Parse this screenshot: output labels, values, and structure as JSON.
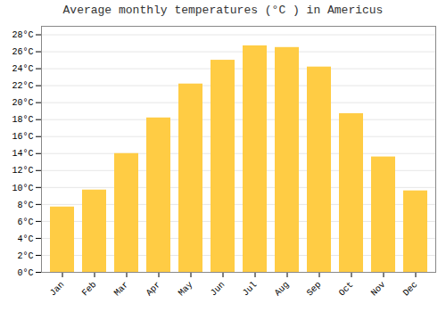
{
  "chart_data": {
    "type": "bar",
    "title": "Average monthly temperatures (°C ) in Americus",
    "categories": [
      "Jan",
      "Feb",
      "Mar",
      "Apr",
      "May",
      "Jun",
      "Jul",
      "Aug",
      "Sep",
      "Oct",
      "Nov",
      "Dec"
    ],
    "values": [
      7.7,
      9.7,
      14.0,
      18.2,
      22.2,
      25.0,
      26.7,
      26.5,
      24.2,
      18.7,
      13.6,
      9.6
    ],
    "color": "#FFCC44",
    "ylim": [
      0,
      29
    ],
    "yticks": [
      {
        "value": 0,
        "label": "0°C"
      },
      {
        "value": 2,
        "label": "2°C"
      },
      {
        "value": 4,
        "label": "4°C"
      },
      {
        "value": 6,
        "label": "6°C"
      },
      {
        "value": 8,
        "label": "8°C"
      },
      {
        "value": 10,
        "label": "10°C"
      },
      {
        "value": 12,
        "label": "12°C"
      },
      {
        "value": 14,
        "label": "14°C"
      },
      {
        "value": 16,
        "label": "16°C"
      },
      {
        "value": 18,
        "label": "18°C"
      },
      {
        "value": 20,
        "label": "20°C"
      },
      {
        "value": 22,
        "label": "22°C"
      },
      {
        "value": 24,
        "label": "24°C"
      },
      {
        "value": 26,
        "label": "26°C"
      },
      {
        "value": 28,
        "label": "28°C"
      }
    ],
    "grid": true
  }
}
